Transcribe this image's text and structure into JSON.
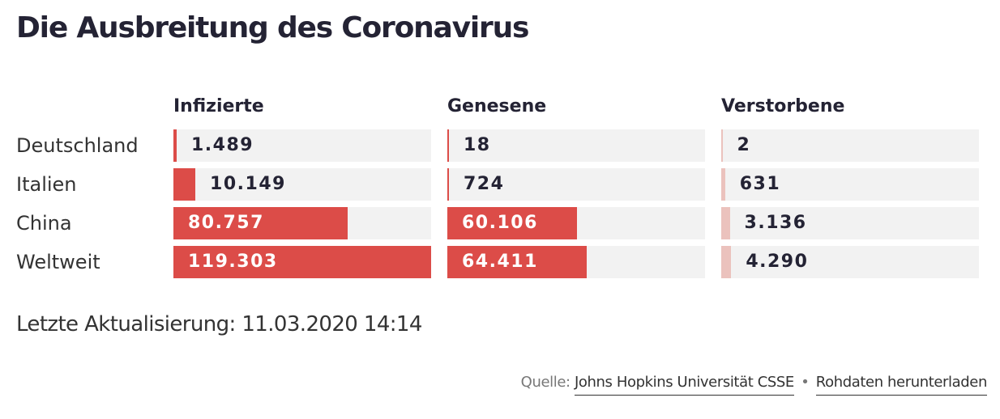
{
  "title": "Die Ausbreitung des Coronavirus",
  "updated": "Letzte Aktualisierung: 11.03.2020 14:14",
  "source": {
    "prefix": "Quelle:",
    "link1": "Johns Hopkins Universität CSSE",
    "separator": "•",
    "link2": "Rohdaten herunterladen"
  },
  "colors": {
    "bar": "#dc4c48",
    "bar_light": "#ebc2bd",
    "cell_bg": "#f2f2f2",
    "title": "#242334"
  },
  "chart_data": {
    "type": "table",
    "columns": [
      "Infizierte",
      "Genesene",
      "Verstorbene"
    ],
    "rows": [
      "Deutschland",
      "Italien",
      "China",
      "Weltweit"
    ],
    "values": [
      [
        1489,
        18,
        2
      ],
      [
        10149,
        724,
        631
      ],
      [
        80757,
        60106,
        3136
      ],
      [
        119303,
        64411,
        4290
      ]
    ],
    "labels": [
      [
        "1.489",
        "18",
        "2"
      ],
      [
        "10.149",
        "724",
        "631"
      ],
      [
        "80.757",
        "60.106",
        "3.136"
      ],
      [
        "119.303",
        "64.411",
        "4.290"
      ]
    ],
    "scale_max": 119303
  }
}
